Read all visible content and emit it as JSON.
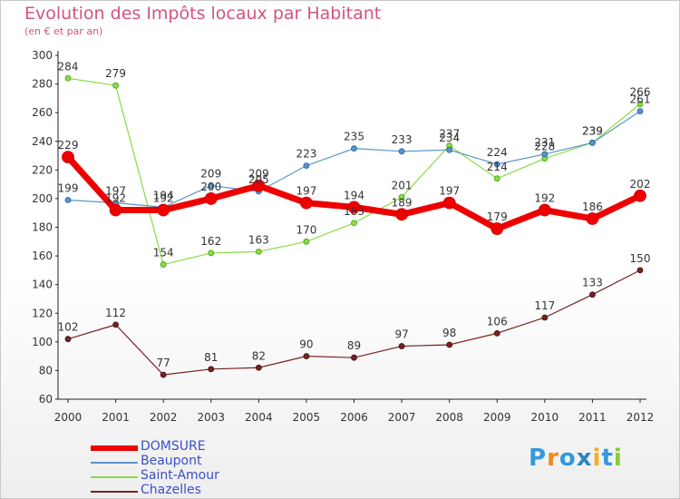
{
  "title": "Evolution des Impôts locaux par Habitant",
  "subtitle": "(en € et par an)",
  "logo_text": "Proxiti",
  "colors": {
    "DOMSURE": "#ee0000",
    "Beaupont": "#5a95c8",
    "Saint-Amour": "#88dd44",
    "Chazelles": "#772222",
    "legend_text": "#3a4fc8",
    "title": "#d2547f"
  },
  "chart_data": {
    "type": "line",
    "title": "Evolution des Impôts locaux par Habitant",
    "subtitle": "(en € et par an)",
    "x": [
      2000,
      2001,
      2002,
      2003,
      2004,
      2005,
      2006,
      2007,
      2008,
      2009,
      2010,
      2011,
      2012
    ],
    "ylim": [
      60,
      300
    ],
    "yticks": [
      60,
      80,
      100,
      120,
      140,
      160,
      180,
      200,
      220,
      240,
      260,
      280,
      300
    ],
    "grid": false,
    "legend_position": "bottom-left",
    "series": [
      {
        "name": "DOMSURE",
        "values": [
          229,
          192,
          192,
          200,
          209,
          197,
          194,
          189,
          197,
          179,
          192,
          186,
          202
        ]
      },
      {
        "name": "Beaupont",
        "values": [
          199,
          197,
          194,
          209,
          205,
          223,
          235,
          233,
          234,
          224,
          231,
          239,
          261
        ]
      },
      {
        "name": "Saint-Amour",
        "values": [
          284,
          279,
          154,
          162,
          163,
          170,
          183,
          201,
          237,
          214,
          228,
          239,
          266
        ]
      },
      {
        "name": "Chazelles",
        "values": [
          102,
          112,
          77,
          81,
          82,
          90,
          89,
          97,
          98,
          106,
          117,
          133,
          150
        ]
      }
    ]
  }
}
